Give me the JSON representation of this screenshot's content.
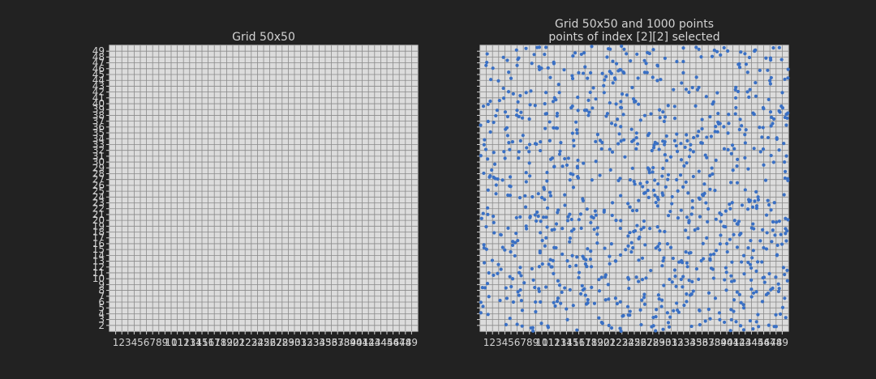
{
  "chart_data": [
    {
      "type": "heatmap",
      "title": "Grid 50x50",
      "grid_size": [
        50,
        50
      ],
      "x_ticks": [
        "1",
        "2",
        "3",
        "4",
        "5",
        "6",
        "7",
        "8",
        "9",
        "10",
        "11",
        "12",
        "13",
        "14",
        "15",
        "16",
        "17",
        "18",
        "19",
        "20",
        "21",
        "22",
        "23",
        "24",
        "25",
        "26",
        "27",
        "28",
        "29",
        "30",
        "31",
        "32",
        "33",
        "34",
        "35",
        "36",
        "37",
        "38",
        "39",
        "40",
        "41",
        "42",
        "43",
        "44",
        "45",
        "46",
        "47",
        "48",
        "49"
      ],
      "y_ticks": [
        "2",
        "3",
        "4",
        "5",
        "6",
        "7",
        "8",
        "9",
        "10",
        "11",
        "12",
        "13",
        "14",
        "15",
        "16",
        "17",
        "18",
        "19",
        "20",
        "21",
        "22",
        "23",
        "24",
        "25",
        "26",
        "27",
        "28",
        "29",
        "30",
        "31",
        "32",
        "33",
        "34",
        "35",
        "36",
        "37",
        "38",
        "39",
        "40",
        "41",
        "42",
        "43",
        "44",
        "45",
        "46",
        "47",
        "48",
        "49"
      ],
      "xlim": [
        0,
        50
      ],
      "ylim": [
        1,
        50
      ],
      "grid": true
    },
    {
      "type": "scatter",
      "title": "Grid 50x50 and 1000 points",
      "subtitle": "points of index [2][2] selected",
      "grid_size": [
        50,
        50
      ],
      "n_points": 1000,
      "x_ticks": [
        "1",
        "2",
        "3",
        "4",
        "5",
        "6",
        "7",
        "8",
        "9",
        "10",
        "11",
        "12",
        "13",
        "14",
        "15",
        "16",
        "17",
        "18",
        "19",
        "20",
        "21",
        "22",
        "23",
        "24",
        "25",
        "26",
        "27",
        "28",
        "29",
        "30",
        "31",
        "32",
        "33",
        "34",
        "35",
        "36",
        "37",
        "38",
        "39",
        "40",
        "41",
        "42",
        "43",
        "44",
        "45",
        "46",
        "47",
        "48",
        "49"
      ],
      "xlim": [
        0,
        50
      ],
      "ylim": [
        1,
        50
      ],
      "grid": true,
      "point_color": "#3a70c4"
    }
  ],
  "colors": {
    "background": "#222222",
    "panel": "#dcdcdc",
    "grid": "#8a8a8a",
    "text": "#d2d2d2",
    "points": "#3a70c4"
  }
}
